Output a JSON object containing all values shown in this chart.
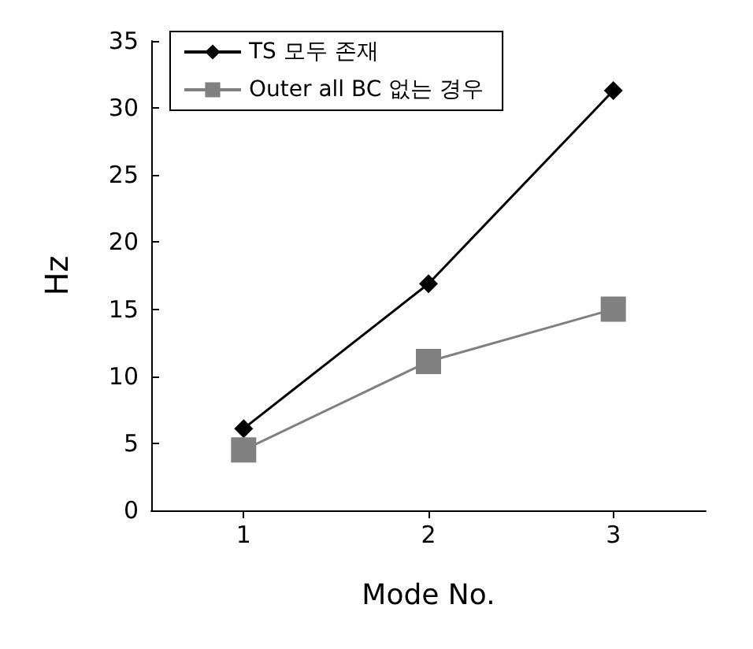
{
  "chart_data": {
    "type": "line",
    "xlabel": "Mode No.",
    "ylabel": "Hz",
    "categories": [
      "1",
      "2",
      "3"
    ],
    "series": [
      {
        "name": "TS 모두 존재",
        "color": "#000000",
        "marker": "diamond",
        "values": [
          6.1,
          16.9,
          31.3
        ]
      },
      {
        "name": "Outer all BC 없는 경우",
        "color": "#808080",
        "marker": "square",
        "values": [
          4.5,
          11.1,
          15.0
        ]
      }
    ],
    "ylim": [
      0,
      35
    ],
    "yticks": [
      0,
      5,
      10,
      15,
      20,
      25,
      30,
      35
    ],
    "grid": false,
    "legend": "top left",
    "line_style": "solid"
  }
}
